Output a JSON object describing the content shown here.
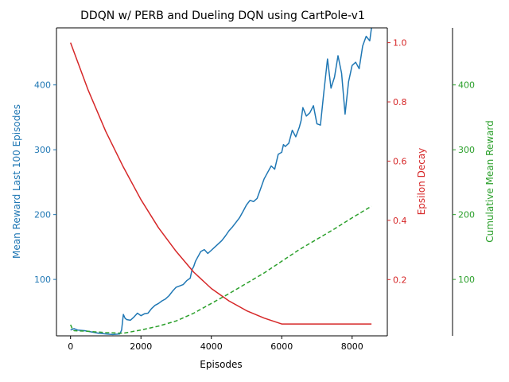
{
  "chart_data": {
    "type": "line",
    "title": "DDQN w/ PERB and Dueling DQN using CartPole-v1",
    "xlabel": "Episodes",
    "xlim": [
      -400,
      9000
    ],
    "xticks": [
      0,
      2000,
      4000,
      6000,
      8000
    ],
    "axes": {
      "left": {
        "label": "Mean Reward Last 100 Episodes",
        "color": "#1f77b4",
        "ylim": [
          13,
          488
        ],
        "ticks": [
          100,
          200,
          300,
          400
        ]
      },
      "right1": {
        "label": "Epsilon Decay",
        "color": "#d62728",
        "ylim": [
          0.01,
          1.05
        ],
        "ticks": [
          0.2,
          0.4,
          0.6,
          0.8,
          1.0
        ]
      },
      "right2": {
        "label": "Cumulative Mean Reward",
        "color": "#2ca02c",
        "ylim": [
          13,
          488
        ],
        "ticks": [
          100,
          200,
          300,
          400
        ]
      }
    },
    "series": [
      {
        "axis": "left",
        "color": "#1f77b4",
        "style": "solid",
        "x": [
          0,
          100,
          200,
          400,
          600,
          800,
          1000,
          1200,
          1400,
          1450,
          1500,
          1550,
          1600,
          1700,
          1800,
          1900,
          2000,
          2100,
          2200,
          2300,
          2400,
          2500,
          2600,
          2700,
          2800,
          2900,
          3000,
          3100,
          3200,
          3300,
          3400,
          3450,
          3500,
          3550,
          3600,
          3650,
          3700,
          3800,
          3900,
          4000,
          4100,
          4200,
          4300,
          4400,
          4500,
          4600,
          4700,
          4800,
          4900,
          5000,
          5100,
          5200,
          5300,
          5400,
          5500,
          5600,
          5700,
          5800,
          5900,
          6000,
          6050,
          6100,
          6200,
          6300,
          6400,
          6500,
          6550,
          6600,
          6700,
          6800,
          6900,
          7000,
          7100,
          7200,
          7300,
          7400,
          7500,
          7600,
          7700,
          7800,
          7900,
          8000,
          8100,
          8200,
          8300,
          8400,
          8500,
          8550
        ],
        "y": [
          22,
          24,
          22,
          21,
          19,
          17,
          16,
          15,
          16,
          22,
          46,
          40,
          38,
          37,
          42,
          48,
          44,
          47,
          48,
          55,
          60,
          63,
          67,
          70,
          75,
          82,
          88,
          90,
          92,
          98,
          102,
          115,
          120,
          128,
          133,
          138,
          143,
          146,
          140,
          145,
          150,
          155,
          160,
          167,
          175,
          181,
          188,
          195,
          205,
          215,
          222,
          220,
          225,
          240,
          255,
          265,
          275,
          270,
          293,
          296,
          308,
          305,
          310,
          330,
          320,
          335,
          345,
          365,
          352,
          357,
          368,
          340,
          338,
          390,
          440,
          395,
          412,
          445,
          418,
          355,
          405,
          430,
          435,
          425,
          460,
          475,
          468,
          488
        ]
      },
      {
        "axis": "right1",
        "color": "#d62728",
        "style": "solid",
        "x": [
          0,
          500,
          1000,
          1500,
          2000,
          2500,
          3000,
          3500,
          4000,
          4500,
          5000,
          5500,
          6000,
          6500,
          7000,
          7500,
          8000,
          8550
        ],
        "y": [
          1.0,
          0.84,
          0.7,
          0.58,
          0.47,
          0.375,
          0.295,
          0.225,
          0.17,
          0.128,
          0.095,
          0.07,
          0.05,
          0.05,
          0.05,
          0.05,
          0.05,
          0.05
        ]
      },
      {
        "axis": "right2",
        "color": "#2ca02c",
        "style": "dashed",
        "x": [
          0,
          50,
          100,
          500,
          1000,
          1500,
          2000,
          2500,
          3000,
          3500,
          4000,
          4500,
          5000,
          5500,
          6000,
          6500,
          7000,
          7500,
          8000,
          8550
        ],
        "y": [
          30,
          24,
          21,
          20,
          18,
          17,
          22,
          28,
          36,
          48,
          63,
          78,
          94,
          110,
          128,
          146,
          162,
          178,
          195,
          213
        ]
      }
    ]
  }
}
